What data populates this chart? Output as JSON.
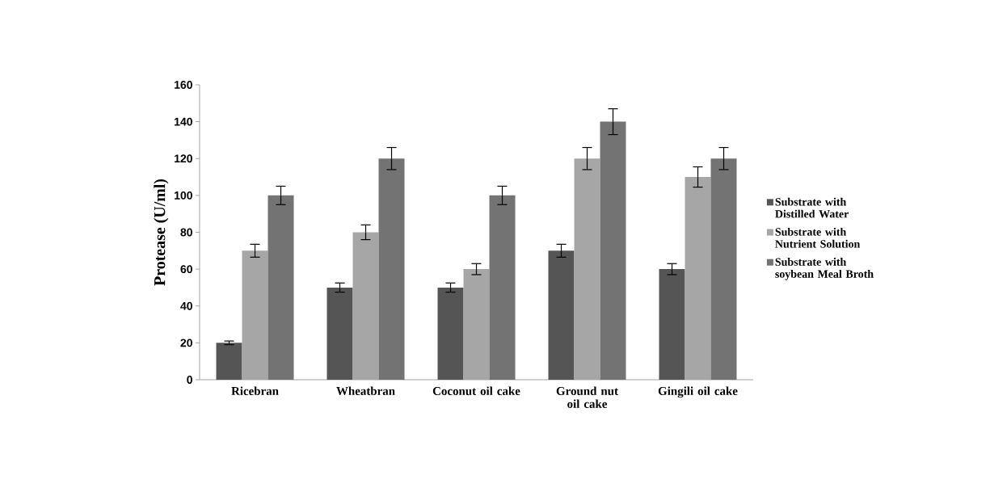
{
  "chart_data": {
    "type": "bar",
    "ylabel": "Protease (U/ml)",
    "categories": [
      "Ricebran",
      "Wheatbran",
      "Coconut oil cake",
      "Ground nut oil cake",
      "Gingili oil cake"
    ],
    "series": [
      {
        "name": "Substrate with Distilled Water",
        "color": "#555555",
        "values": [
          20,
          50,
          50,
          70,
          60
        ],
        "errors": [
          1,
          2.5,
          2.5,
          3.5,
          3
        ]
      },
      {
        "name": "Substrate with Nutrient Solution",
        "color": "#a6a6a6",
        "values": [
          70,
          80,
          60,
          120,
          110
        ],
        "errors": [
          3.5,
          4,
          3,
          6,
          5.5
        ]
      },
      {
        "name": "Substrate with soybean Meal Broth",
        "color": "#737373",
        "values": [
          100,
          120,
          100,
          140,
          120
        ],
        "errors": [
          5,
          6,
          5,
          7,
          6
        ]
      }
    ],
    "ylim": [
      0,
      160
    ],
    "yticks": [
      0,
      20,
      40,
      60,
      80,
      100,
      120,
      140,
      160
    ],
    "grid": false,
    "legend": "right"
  }
}
